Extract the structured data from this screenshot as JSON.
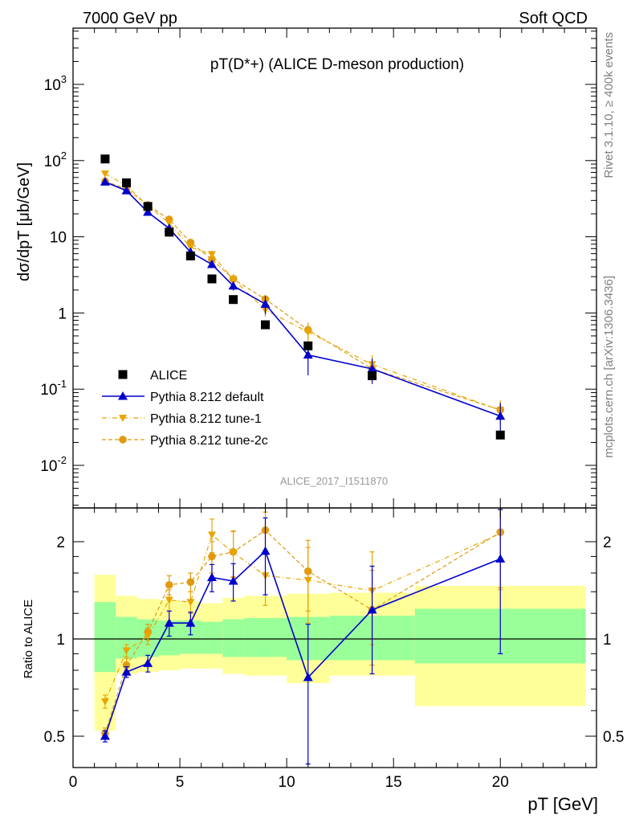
{
  "header": {
    "left": "7000 GeV pp",
    "right": "Soft QCD"
  },
  "side": {
    "rivet": "Rivet 3.1.10, ≥ 400k events",
    "mcplots": "mcplots.cern.ch [arXiv:1306.3436]"
  },
  "colors": {
    "data": "#000000",
    "default": "#0000cc",
    "tune1": "#e8a500",
    "tune2c": "#e09a10",
    "band_inner": "#99ff99",
    "band_outer": "#ffff99"
  },
  "chart_data": {
    "type": "line",
    "title": "pT(D*+) (ALICE D-meson production)",
    "watermark": "ALICE_2017_I1511870",
    "ylabel": "dσ/dpT [μb/GeV]",
    "xlabel": "pT [GeV]",
    "ratio_ylabel": "Ratio to ALICE",
    "xlim": [
      0,
      24.5
    ],
    "ylim": [
      0.003,
      5000
    ],
    "yscale": "log",
    "ratio_ylim": [
      0.41,
      2.3
    ],
    "ratio_yscale": "log",
    "x_ticks": [
      "0",
      "5",
      "10",
      "15",
      "20"
    ],
    "y_ticks": [
      "10^-2",
      "10^-1",
      "1",
      "10",
      "10^2",
      "10^3"
    ],
    "ratio_ticks": [
      "0.5",
      "1",
      "2"
    ],
    "legend": [
      "ALICE",
      "Pythia 8.212 default",
      "Pythia 8.212 tune-1",
      "Pythia 8.212 tune-2c"
    ],
    "legend_position": "bottom-left",
    "data": {
      "name": "ALICE",
      "x": [
        1.5,
        2.5,
        3.5,
        4.5,
        5.5,
        6.5,
        7.5,
        9,
        11,
        14,
        20
      ],
      "xlow": [
        1,
        2,
        3,
        4,
        5,
        6,
        7,
        8,
        10,
        12,
        16
      ],
      "xhigh": [
        2,
        3,
        4,
        5,
        6,
        7,
        8,
        10,
        12,
        16,
        24
      ],
      "y": [
        105,
        51,
        25,
        11.5,
        5.6,
        2.8,
        1.5,
        0.7,
        0.37,
        0.15,
        0.025
      ],
      "band_inner": [
        [
          0.79,
          1.3
        ],
        [
          0.87,
          1.17
        ],
        [
          0.88,
          1.15
        ],
        [
          0.89,
          1.14
        ],
        [
          0.9,
          1.14
        ],
        [
          0.9,
          1.13
        ],
        [
          0.88,
          1.15
        ],
        [
          0.88,
          1.16
        ],
        [
          0.86,
          1.17
        ],
        [
          0.86,
          1.18
        ],
        [
          0.84,
          1.24
        ]
      ],
      "band_outer": [
        [
          0.52,
          1.58
        ],
        [
          0.78,
          1.36
        ],
        [
          0.79,
          1.33
        ],
        [
          0.8,
          1.32
        ],
        [
          0.81,
          1.31
        ],
        [
          0.81,
          1.29
        ],
        [
          0.78,
          1.34
        ],
        [
          0.77,
          1.36
        ],
        [
          0.73,
          1.38
        ],
        [
          0.77,
          1.39
        ],
        [
          0.62,
          1.46
        ]
      ]
    },
    "series": [
      {
        "name": "Pythia 8.212 default",
        "marker": "triangle-up",
        "line": "solid",
        "x": [
          1.5,
          2.5,
          3.5,
          4.5,
          5.5,
          6.5,
          7.5,
          9,
          11,
          14,
          20
        ],
        "ratio": [
          0.5,
          0.79,
          0.84,
          1.12,
          1.12,
          1.55,
          1.51,
          1.87,
          0.76,
          1.23,
          1.77
        ],
        "ratio_err": [
          0.02,
          0.03,
          0.05,
          0.1,
          0.09,
          0.15,
          0.2,
          0.5,
          0.35,
          0.45,
          0.87
        ]
      },
      {
        "name": "Pythia 8.212 tune-1",
        "marker": "triangle-down",
        "line": "dashdot",
        "x": [
          1.5,
          2.5,
          3.5,
          4.5,
          5.5,
          6.5,
          7.5,
          9,
          11,
          14,
          20
        ],
        "ratio": [
          0.64,
          0.92,
          1.02,
          1.32,
          1.3,
          2.1,
          1.85,
          1.57,
          1.52,
          1.41,
          2.12
        ],
        "ratio_err": [
          0.03,
          0.04,
          0.06,
          0.1,
          0.1,
          0.25,
          0.3,
          0.3,
          0.4,
          0.45,
          0.7
        ]
      },
      {
        "name": "Pythia 8.212 tune-2c",
        "marker": "circle",
        "line": "dashed",
        "x": [
          1.5,
          2.5,
          3.5,
          4.5,
          5.5,
          6.5,
          7.5,
          9,
          11,
          14,
          20
        ],
        "ratio": [
          0.51,
          0.83,
          1.05,
          1.47,
          1.5,
          1.8,
          1.86,
          2.17,
          1.62,
          1.23,
          2.14
        ],
        "ratio_err": [
          0.02,
          0.04,
          0.06,
          0.1,
          0.1,
          0.2,
          0.3,
          0.3,
          0.4,
          0.4,
          0.7
        ]
      }
    ]
  }
}
